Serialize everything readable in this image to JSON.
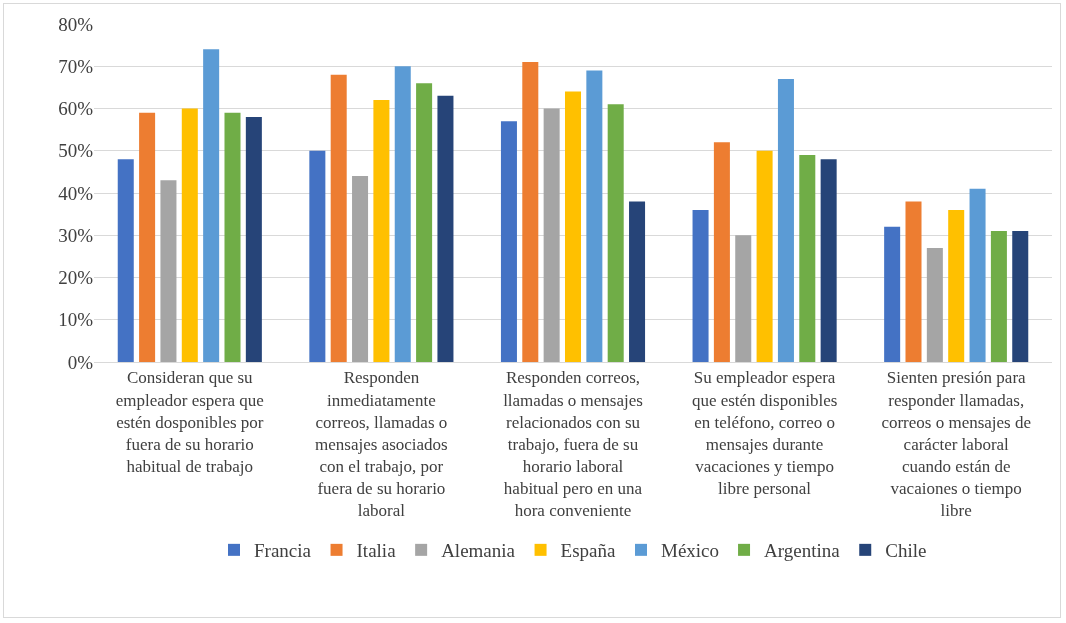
{
  "chart_data": {
    "type": "bar",
    "categories": [
      "Consideran que su empleador espera que estén dosponibles por fuera de su horario habitual de trabajo",
      "Responden inmediatamente correos, llamadas o mensajes asociados con el trabajo, por fuera de su horario laboral",
      "Responden correos, llamadas o mensajes relacionados con su trabajo, fuera de su horario laboral habitual pero en una hora conveniente",
      "Su empleador espera que estén disponibles en teléfono, correo o mensajes durante vacaciones y tiempo libre personal",
      "Sienten presión para responder llamadas, correos o mensajes de carácter laboral cuando están de vacaiones o tiempo libre"
    ],
    "series": [
      {
        "name": "Francia",
        "color": "#4472c4",
        "values": [
          48,
          50,
          57,
          36,
          32
        ]
      },
      {
        "name": "Italia",
        "color": "#ed7d31",
        "values": [
          59,
          68,
          71,
          52,
          38
        ]
      },
      {
        "name": "Alemania",
        "color": "#a5a5a5",
        "values": [
          43,
          44,
          60,
          30,
          27
        ]
      },
      {
        "name": "España",
        "color": "#ffc000",
        "values": [
          60,
          62,
          64,
          50,
          36
        ]
      },
      {
        "name": "México",
        "color": "#5b9bd5",
        "values": [
          74,
          70,
          69,
          67,
          41
        ]
      },
      {
        "name": "Argentina",
        "color": "#70ad47",
        "values": [
          59,
          66,
          61,
          49,
          31
        ]
      },
      {
        "name": "Chile",
        "color": "#264478",
        "values": [
          58,
          63,
          38,
          48,
          31
        ]
      }
    ],
    "ylim": [
      0,
      80
    ],
    "yticks": [
      {
        "value": 0,
        "label": "0%"
      },
      {
        "value": 10,
        "label": "10%"
      },
      {
        "value": 20,
        "label": "20%"
      },
      {
        "value": 30,
        "label": "30%"
      },
      {
        "value": 40,
        "label": "40%"
      },
      {
        "value": 50,
        "label": "50%"
      },
      {
        "value": 60,
        "label": "60%"
      },
      {
        "value": 70,
        "label": "70%"
      },
      {
        "value": 80,
        "label": "80%"
      }
    ],
    "grid": "y",
    "legend": "bottom"
  }
}
